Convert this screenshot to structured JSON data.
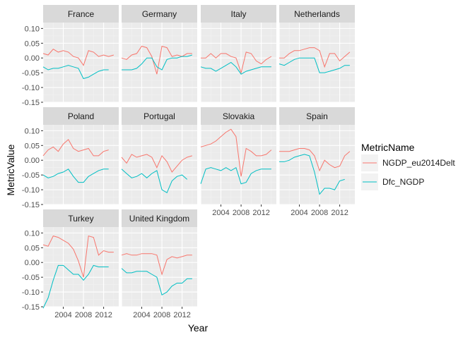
{
  "chart_data": {
    "type": "line",
    "facet_by": "country",
    "xlabel": "Year",
    "ylabel": "MetricValue",
    "ylim": [
      -0.15,
      0.12
    ],
    "yticks": [
      -0.15,
      -0.1,
      -0.05,
      0.0,
      0.05,
      0.1
    ],
    "ytick_labels": [
      "-0.15",
      "-0.10",
      "-0.05",
      "0.00",
      "0.05",
      "0.10"
    ],
    "xlim": [
      2000,
      2015
    ],
    "xticks": [
      2004,
      2008,
      2012
    ],
    "xtick_labels": [
      "2004",
      "2008",
      "2012"
    ],
    "x": [
      2000,
      2001,
      2002,
      2003,
      2004,
      2005,
      2006,
      2007,
      2008,
      2009,
      2010,
      2011,
      2012,
      2013,
      2014
    ],
    "legend": {
      "title": "MetricName",
      "position": "right"
    },
    "series_meta": [
      {
        "name": "NGDP_eu2014Delt",
        "color": "#F8766D"
      },
      {
        "name": "Dfc_NGDP",
        "color": "#00BFC4"
      }
    ],
    "panels": [
      {
        "country": "France",
        "NGDP_eu2014Delt": [
          0.015,
          0.01,
          0.03,
          0.02,
          0.025,
          0.02,
          0.005,
          0.0,
          -0.025,
          0.025,
          0.02,
          0.005,
          0.01,
          0.005,
          0.01
        ],
        "Dfc_NGDP": [
          -0.03,
          -0.04,
          -0.035,
          -0.035,
          -0.03,
          -0.025,
          -0.03,
          -0.035,
          -0.07,
          -0.065,
          -0.055,
          -0.045,
          -0.04,
          -0.04,
          null
        ]
      },
      {
        "country": "Germany",
        "NGDP_eu2014Delt": [
          0.0,
          -0.005,
          0.01,
          0.015,
          0.04,
          0.035,
          0.005,
          -0.055,
          0.04,
          0.035,
          0.005,
          0.01,
          0.005,
          0.015,
          0.015
        ],
        "Dfc_NGDP": [
          -0.04,
          -0.04,
          -0.04,
          -0.035,
          -0.02,
          0.0,
          0.0,
          -0.03,
          -0.04,
          -0.005,
          0.0,
          0.0,
          0.005,
          0.005,
          0.01
        ]
      },
      {
        "country": "Italy",
        "NGDP_eu2014Delt": [
          0.0,
          0.0,
          0.015,
          0.0,
          0.015,
          0.015,
          0.005,
          0.0,
          -0.05,
          0.02,
          0.015,
          -0.01,
          -0.02,
          -0.005,
          0.005
        ],
        "Dfc_NGDP": [
          -0.03,
          -0.035,
          -0.035,
          -0.045,
          -0.035,
          -0.025,
          -0.015,
          -0.03,
          -0.055,
          -0.045,
          -0.04,
          -0.035,
          -0.03,
          -0.03,
          -0.03
        ]
      },
      {
        "country": "Netherlands",
        "NGDP_eu2014Delt": [
          0.0,
          0.0,
          0.015,
          0.025,
          0.025,
          0.03,
          0.035,
          0.035,
          0.025,
          -0.03,
          0.015,
          0.015,
          -0.01,
          0.005,
          0.02
        ],
        "Dfc_NGDP": [
          -0.02,
          -0.025,
          -0.015,
          -0.005,
          0.0,
          0.0,
          0.0,
          0.0,
          -0.05,
          -0.05,
          -0.045,
          -0.04,
          -0.035,
          -0.025,
          -0.025
        ]
      },
      {
        "country": "Poland",
        "NGDP_eu2014Delt": [
          0.015,
          0.035,
          0.045,
          0.03,
          0.055,
          0.07,
          0.04,
          0.03,
          0.035,
          0.04,
          0.015,
          0.015,
          0.03,
          0.035,
          null
        ],
        "Dfc_NGDP": [
          -0.05,
          -0.06,
          -0.055,
          -0.045,
          -0.04,
          -0.03,
          -0.055,
          -0.075,
          -0.075,
          -0.055,
          -0.045,
          -0.035,
          -0.03,
          -0.03,
          null
        ]
      },
      {
        "country": "Portugal",
        "NGDP_eu2014Delt": [
          0.01,
          -0.01,
          0.02,
          0.01,
          0.015,
          0.02,
          0.01,
          -0.025,
          0.015,
          -0.005,
          -0.04,
          -0.02,
          0.0,
          0.01,
          0.015
        ],
        "Dfc_NGDP": [
          -0.03,
          -0.045,
          -0.06,
          -0.055,
          -0.045,
          -0.06,
          -0.045,
          -0.035,
          -0.1,
          -0.11,
          -0.07,
          -0.055,
          -0.05,
          -0.065,
          null
        ]
      },
      {
        "country": "Slovakia",
        "NGDP_eu2014Delt": [
          0.045,
          0.05,
          0.055,
          0.065,
          0.08,
          0.095,
          0.105,
          0.08,
          -0.055,
          0.04,
          0.03,
          0.015,
          0.015,
          0.02,
          0.035
        ],
        "Dfc_NGDP": [
          -0.08,
          -0.03,
          -0.025,
          -0.03,
          -0.035,
          -0.025,
          -0.035,
          -0.025,
          -0.08,
          -0.075,
          -0.045,
          -0.035,
          -0.03,
          -0.03,
          -0.03
        ]
      },
      {
        "country": "Spain",
        "NGDP_eu2014Delt": [
          0.03,
          0.03,
          0.03,
          0.035,
          0.04,
          0.04,
          0.035,
          0.015,
          -0.035,
          0.0,
          -0.015,
          -0.025,
          -0.02,
          0.015,
          0.03
        ],
        "Dfc_NGDP": [
          -0.005,
          -0.005,
          0.0,
          0.01,
          0.015,
          0.02,
          0.015,
          -0.04,
          -0.115,
          -0.095,
          -0.095,
          -0.1,
          -0.07,
          -0.065,
          null
        ]
      },
      {
        "country": "Turkey",
        "NGDP_eu2014Delt": [
          0.06,
          0.055,
          0.09,
          0.085,
          0.075,
          0.065,
          0.045,
          0.005,
          -0.05,
          0.09,
          0.085,
          0.025,
          0.04,
          0.035,
          0.035
        ],
        "Dfc_NGDP": [
          -0.155,
          -0.12,
          -0.06,
          -0.01,
          -0.01,
          -0.025,
          -0.04,
          -0.04,
          -0.06,
          -0.04,
          -0.01,
          -0.015,
          -0.015,
          -0.015,
          null
        ]
      },
      {
        "country": "United Kingdom",
        "NGDP_eu2014Delt": [
          0.025,
          0.03,
          0.025,
          0.025,
          0.03,
          0.03,
          0.03,
          0.025,
          -0.04,
          0.01,
          0.02,
          0.015,
          0.02,
          0.025,
          0.025
        ],
        "Dfc_NGDP": [
          -0.02,
          -0.035,
          -0.035,
          -0.03,
          -0.03,
          -0.03,
          -0.04,
          -0.05,
          -0.11,
          -0.1,
          -0.08,
          -0.07,
          -0.07,
          -0.055,
          -0.055
        ]
      }
    ]
  }
}
